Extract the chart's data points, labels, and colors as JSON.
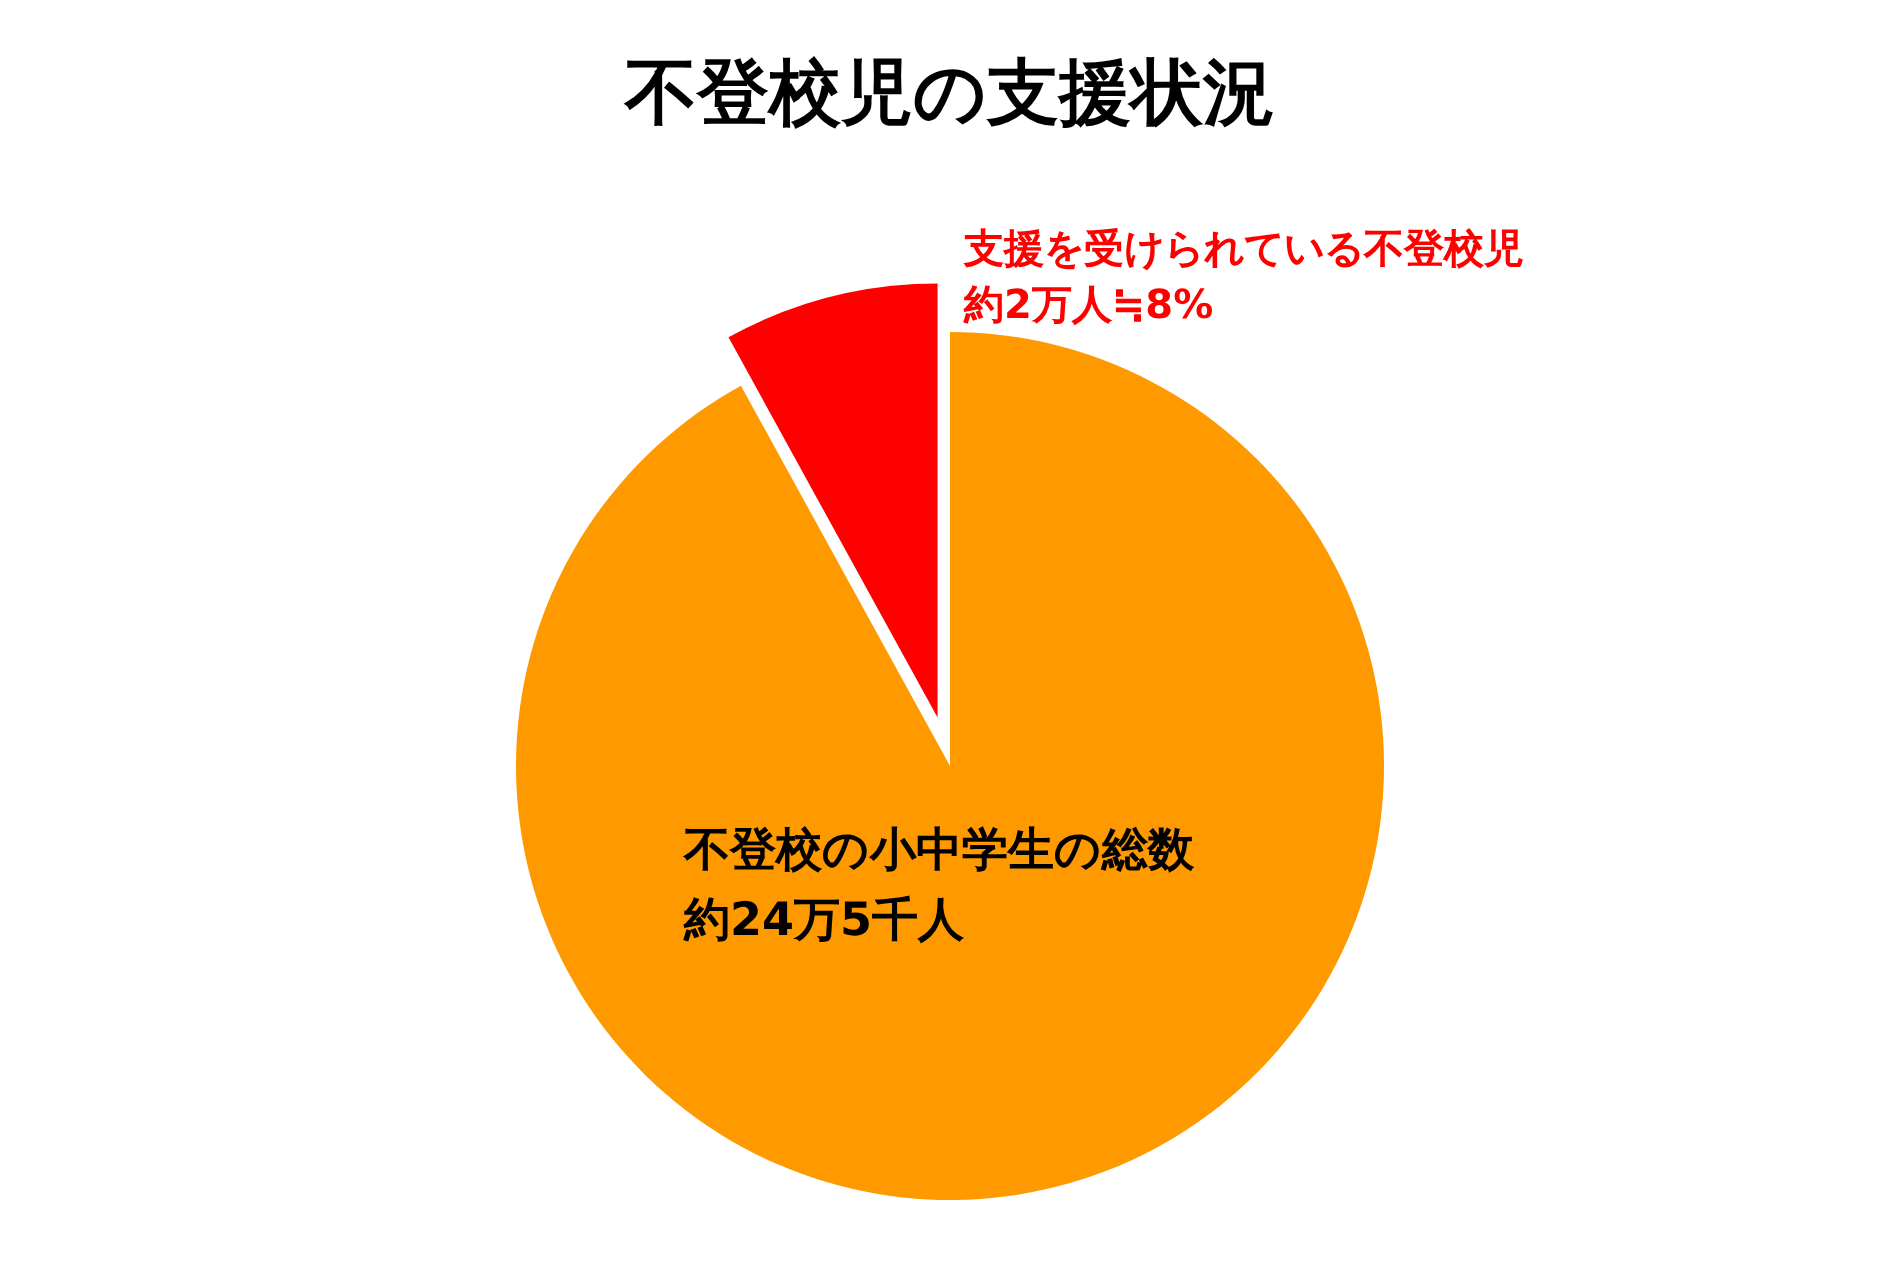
{
  "chart_data": {
    "type": "pie",
    "title": "不登校児の支援状況",
    "categories": [
      "支援を受けられている不登校児",
      "不登校の小中学生の総数"
    ],
    "values": [
      8,
      92
    ],
    "value_labels": [
      "約2万人≒8%",
      "約24万5千人"
    ],
    "colors": [
      "#ff0000",
      "#ff9900"
    ]
  }
}
